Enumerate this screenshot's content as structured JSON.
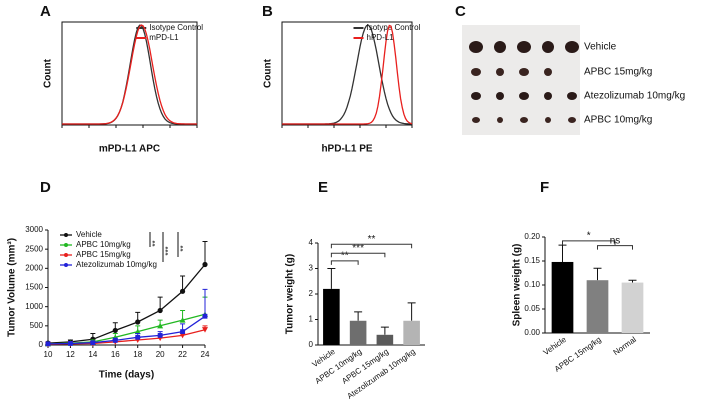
{
  "chart_data": [
    {
      "type": "density",
      "panel": "A",
      "x_label": "mPD-L1 APC",
      "y_label": "Count",
      "series": [
        {
          "name": "Isotype Control",
          "color": "#333333"
        },
        {
          "name": "mPD-L1",
          "color": "#e8201e"
        }
      ]
    },
    {
      "type": "density",
      "panel": "B",
      "x_label": "hPD-L1 PE",
      "y_label": "Count",
      "series": [
        {
          "name": "Isotype Control",
          "color": "#333333"
        },
        {
          "name": "hPD-L1",
          "color": "#e8201e"
        }
      ]
    },
    {
      "type": "image",
      "panel": "C",
      "labels": [
        "Vehicle",
        "APBC 15mg/kg",
        "Atezolizumab 10mg/kg",
        "APBC 10mg/kg"
      ]
    },
    {
      "type": "line",
      "panel": "D",
      "x_label": "Time (days)",
      "y_label": "Tumor Volume (mm³)",
      "x": [
        10,
        12,
        14,
        16,
        18,
        20,
        22,
        24
      ],
      "xlim": [
        10,
        24
      ],
      "xticks": [
        10,
        12,
        14,
        16,
        18,
        20,
        22,
        24
      ],
      "ylim": [
        0,
        3000
      ],
      "yticks": [
        0,
        500,
        1000,
        1500,
        2000,
        2500,
        3000
      ],
      "legend": "upper left",
      "annotations": [
        "**",
        "***",
        "**"
      ],
      "series": [
        {
          "name": "Vehicle",
          "color": "#111111",
          "marker": "circle",
          "values": [
            50,
            80,
            150,
            380,
            600,
            900,
            1400,
            2100
          ],
          "errors": [
            20,
            50,
            150,
            200,
            250,
            350,
            400,
            600
          ]
        },
        {
          "name": "APBC 10mg/kg",
          "color": "#22b822",
          "marker": "triangle-up",
          "values": [
            30,
            50,
            80,
            200,
            350,
            500,
            650,
            800
          ],
          "errors": [
            20,
            30,
            50,
            100,
            150,
            150,
            250,
            450
          ]
        },
        {
          "name": "APBC 15mg/kg",
          "color": "#e8201e",
          "marker": "triangle-down",
          "values": [
            20,
            30,
            40,
            80,
            130,
            180,
            250,
            400
          ],
          "errors": [
            10,
            20,
            30,
            50,
            80,
            80,
            100,
            100
          ]
        },
        {
          "name": "Atezolizumab 10mg/kg",
          "color": "#2222d8",
          "marker": "square",
          "values": [
            30,
            40,
            60,
            120,
            200,
            250,
            350,
            750
          ],
          "errors": [
            20,
            20,
            30,
            60,
            100,
            100,
            200,
            700
          ]
        }
      ]
    },
    {
      "type": "bar",
      "panel": "E",
      "y_label": "Tumor weight (g)",
      "categories": [
        "Vehicle",
        "APBC 10mg/kg",
        "APBC 15mg/kg",
        "Atezolizumab 10mg/kg"
      ],
      "values": [
        2.2,
        0.95,
        0.4,
        0.95
      ],
      "errors": [
        0.8,
        0.35,
        0.3,
        0.7
      ],
      "colors": [
        "#000000",
        "#6e6e6e",
        "#5a5a5a",
        "#b4b4b4"
      ],
      "ylim": [
        0,
        4
      ],
      "yticks": [
        0,
        1,
        2,
        3,
        4
      ],
      "annotations": [
        "**",
        "***",
        "**"
      ]
    },
    {
      "type": "bar",
      "panel": "F",
      "y_label": "Spleen weight (g)",
      "categories": [
        "Vehicle",
        "APBC 15mg/kg",
        "Normal"
      ],
      "values": [
        0.148,
        0.11,
        0.105
      ],
      "errors": [
        0.035,
        0.025,
        0.005
      ],
      "colors": [
        "#000000",
        "#808080",
        "#d2d2d2"
      ],
      "ylim": [
        0,
        0.2
      ],
      "yticks": [
        {
          "value": 0,
          "label": "0.00"
        },
        {
          "value": 0.05,
          "label": "0.05"
        },
        {
          "value": 0.1,
          "label": "0.10"
        },
        {
          "value": 0.15,
          "label": "0.15"
        },
        {
          "value": 0.2,
          "label": "0.20"
        }
      ],
      "annotations": [
        "*",
        "ns"
      ]
    }
  ]
}
